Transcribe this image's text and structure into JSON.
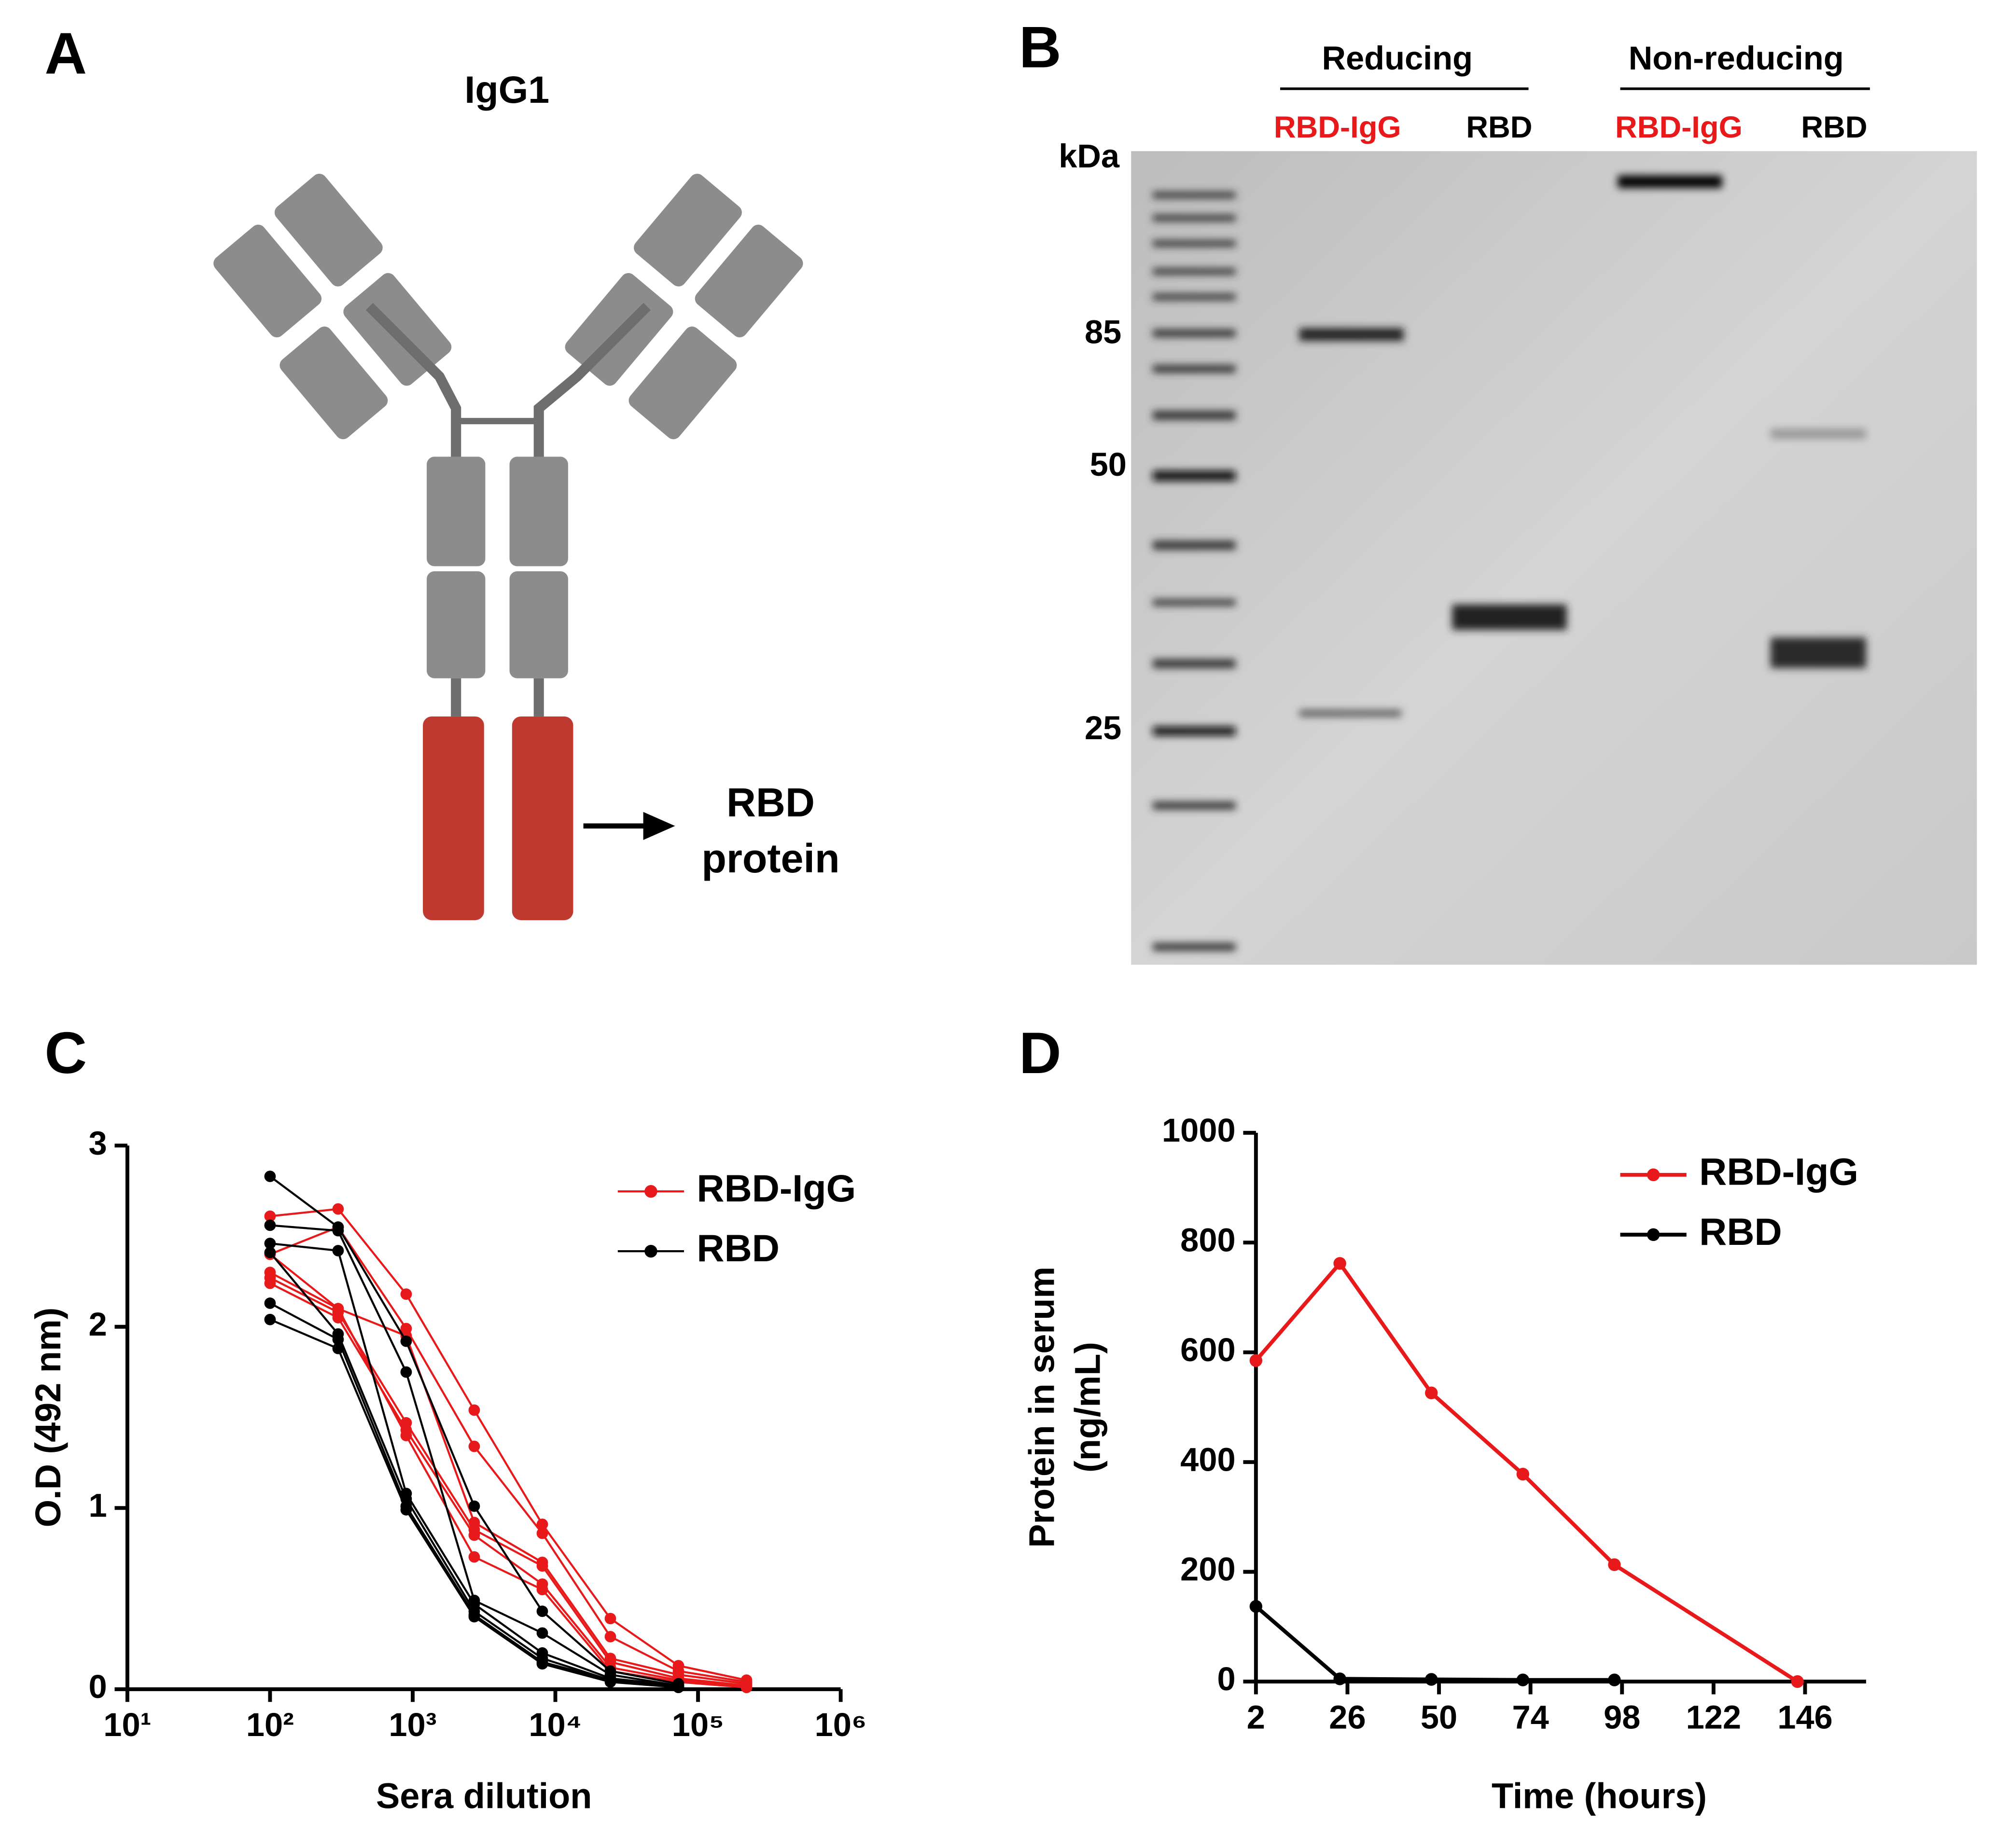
{
  "panel_labels": [
    "A",
    "B",
    "C",
    "D"
  ],
  "diagram": {
    "title": "IgG1",
    "label_lines": [
      "RBD",
      "protein"
    ]
  },
  "gel": {
    "groups": [
      "Reducing",
      "Non-reducing"
    ],
    "lanes": [
      "RBD-IgG",
      "RBD",
      "RBD-IgG",
      "RBD"
    ],
    "unit": "kDa",
    "markers": [
      "85",
      "50",
      "25"
    ]
  },
  "chart_data": [
    {
      "type": "line",
      "log_x": true,
      "x": [
        100,
        300,
        900,
        2700,
        8100,
        24300,
        72900,
        218700
      ],
      "xlim": [
        10,
        1000000
      ],
      "xticks": [
        {
          "value": 10,
          "label": "10¹"
        },
        {
          "value": 100,
          "label": "10²"
        },
        {
          "value": 1000,
          "label": "10³"
        },
        {
          "value": 10000,
          "label": "10⁴"
        },
        {
          "value": 100000,
          "label": "10⁵"
        },
        {
          "value": 1000000,
          "label": "10⁶"
        }
      ],
      "ylim": [
        0,
        3
      ],
      "yticks": [
        0,
        1,
        2,
        3
      ],
      "xlabel": "Sera dilution",
      "ylabel": "O.D (492 nm)",
      "legend": "upper right",
      "series": [
        {
          "name": "RBD-IgG",
          "color": "#e8191a",
          "replicates": [
            [
              2.61,
              2.65,
              2.18,
              1.54,
              0.91,
              0.39,
              0.13,
              0.05
            ],
            [
              2.4,
              2.55,
              1.99,
              1.34,
              0.86,
              0.29,
              0.1,
              0.04
            ],
            [
              2.3,
              2.1,
              1.95,
              0.92,
              0.7,
              0.17,
              0.08,
              0.03
            ],
            [
              2.27,
              2.08,
              1.47,
              0.88,
              0.68,
              0.15,
              0.06,
              0.02
            ],
            [
              2.24,
              2.05,
              1.43,
              0.85,
              0.58,
              0.12,
              0.05,
              0.01
            ],
            [
              2.4,
              2.1,
              1.4,
              0.73,
              0.55,
              0.1,
              0.04,
              0.01
            ]
          ]
        },
        {
          "name": "RBD",
          "color": "#000000",
          "replicates": [
            [
              2.83,
              2.55,
              1.92,
              1.01,
              0.43,
              0.1,
              0.03,
              null
            ],
            [
              2.56,
              2.53,
              1.75,
              0.49,
              0.31,
              0.08,
              0.02,
              null
            ],
            [
              2.46,
              2.42,
              1.08,
              0.47,
              0.2,
              0.06,
              0.02,
              null
            ],
            [
              2.41,
              1.96,
              1.05,
              0.43,
              0.17,
              0.05,
              0.01,
              null
            ],
            [
              2.13,
              1.93,
              1.01,
              0.41,
              0.15,
              0.05,
              0.01,
              null
            ],
            [
              2.04,
              1.88,
              0.99,
              0.4,
              0.14,
              0.04,
              0.01,
              null
            ]
          ]
        }
      ]
    },
    {
      "type": "line",
      "log_x": false,
      "x": [
        2,
        24,
        48,
        72,
        96,
        144
      ],
      "xlim": [
        2,
        162
      ],
      "xticks": [
        2,
        26,
        50,
        74,
        98,
        122,
        146
      ],
      "ylim": [
        0,
        1000
      ],
      "yticks": [
        0,
        200,
        400,
        600,
        800,
        1000
      ],
      "xlabel": "Time (hours)",
      "ylabel": [
        "Protein in serum",
        "(ng/mL)"
      ],
      "legend": "upper right",
      "series": [
        {
          "name": "RBD-IgG",
          "color": "#e8191a",
          "values": [
            585,
            762,
            526,
            378,
            213,
            0
          ]
        },
        {
          "name": "RBD",
          "color": "#000000",
          "values": [
            137,
            5,
            4,
            3,
            3,
            null
          ]
        }
      ]
    }
  ]
}
